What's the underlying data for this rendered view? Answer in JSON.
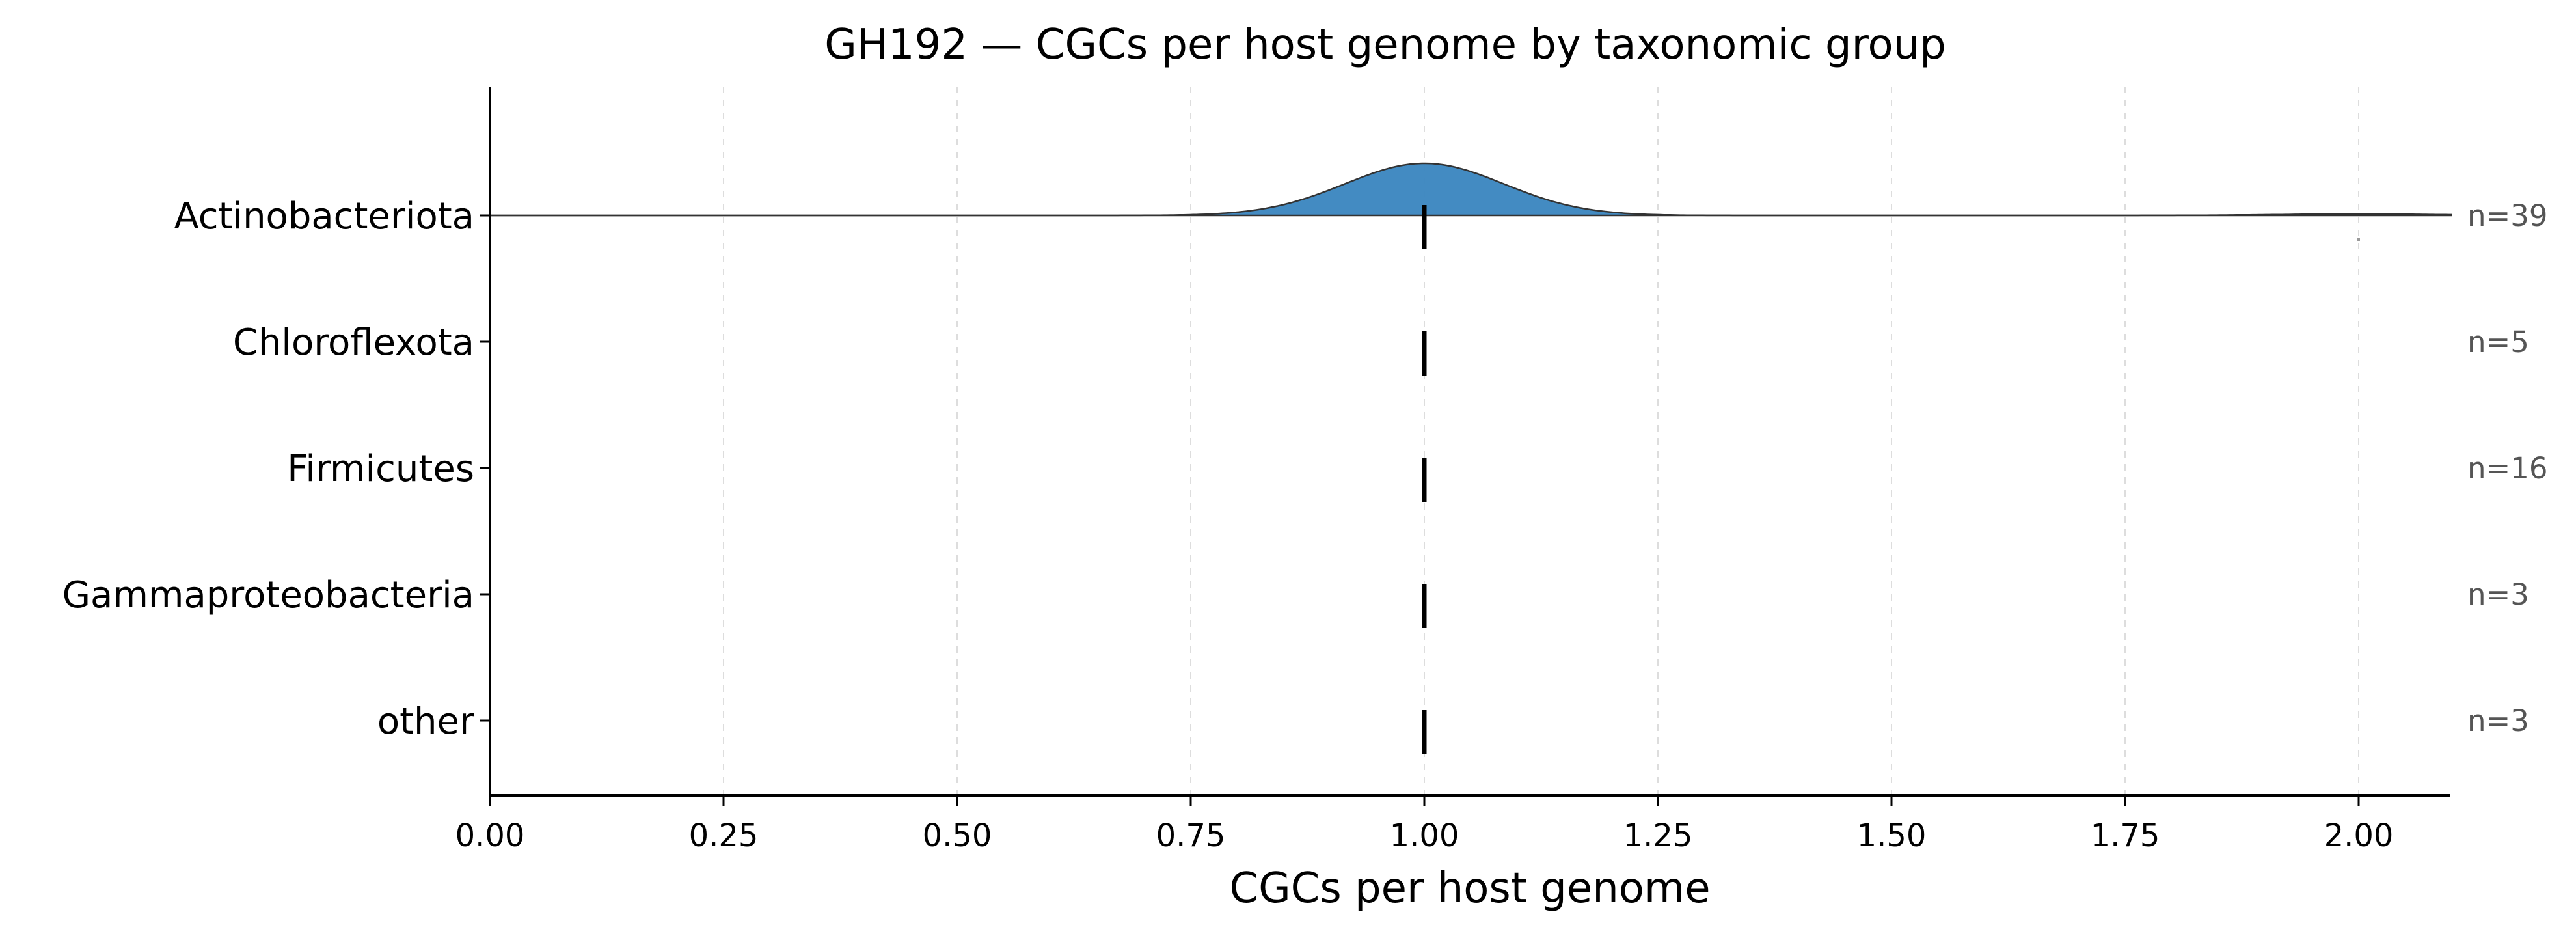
{
  "chart_data": {
    "type": "ridgeline",
    "title": "GH192 — CGCs per host genome by taxonomic group",
    "xlabel": "CGCs per host genome",
    "ylabel": "",
    "xlim": [
      0,
      2.1
    ],
    "x_ticks": [
      0,
      0.25,
      0.5,
      0.75,
      1.0,
      1.25,
      1.5,
      1.75,
      2.0
    ],
    "x_tick_labels": [
      "0.00",
      "0.25",
      "0.50",
      "0.75",
      "1.00",
      "1.25",
      "1.50",
      "1.75",
      "2.00"
    ],
    "grid": "x-dashed",
    "fill_color": "#3d87c0",
    "series": [
      {
        "name": "Actinobacteriota",
        "n_label": "n=39",
        "median": 1.0,
        "points": [
          1.0,
          2.0
        ],
        "density": [
          {
            "mean": 1.0,
            "sd": 0.085,
            "weight": 0.974
          },
          {
            "mean": 2.0,
            "sd": 0.085,
            "weight": 0.026
          }
        ]
      },
      {
        "name": "Chloroflexota",
        "n_label": "n=5",
        "median": 1.0
      },
      {
        "name": "Firmicutes",
        "n_label": "n=16",
        "median": 1.0
      },
      {
        "name": "Gammaproteobacteria",
        "n_label": "n=3",
        "median": 1.0
      },
      {
        "name": "other",
        "n_label": "n=3",
        "median": 1.0
      }
    ]
  }
}
